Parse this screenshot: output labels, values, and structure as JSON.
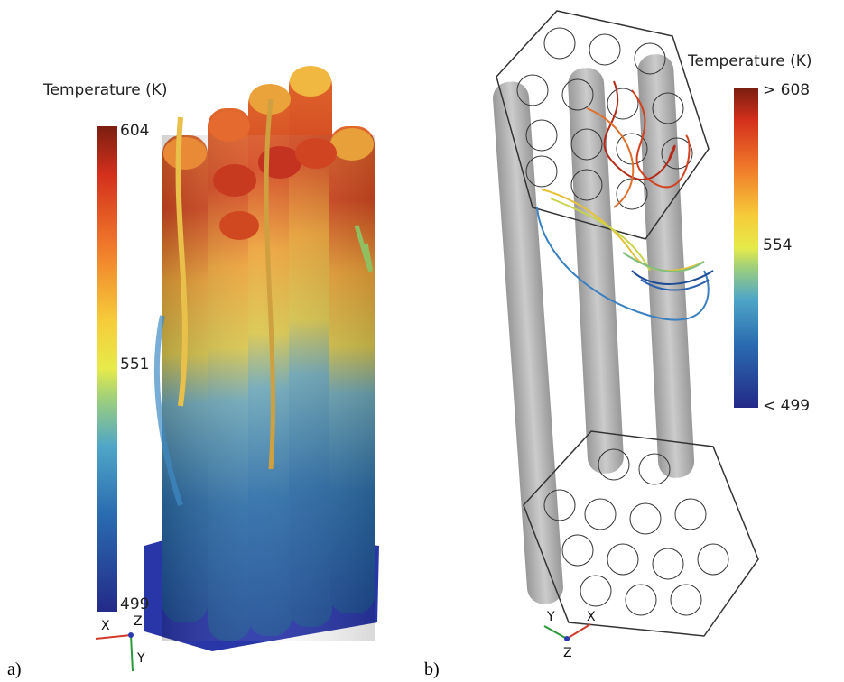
{
  "panels": [
    {
      "label": "a)",
      "legend_title": "Temperature (K)",
      "colorbar_labels": [
        "604",
        "551",
        "499"
      ],
      "axes": [
        "X",
        "Z",
        "Y"
      ]
    },
    {
      "label": "b)",
      "legend_title": "Temperature (K)",
      "colorbar_labels": [
        "> 608",
        "554",
        "< 499"
      ],
      "axes": [
        "Y",
        "X",
        "Z"
      ]
    }
  ]
}
